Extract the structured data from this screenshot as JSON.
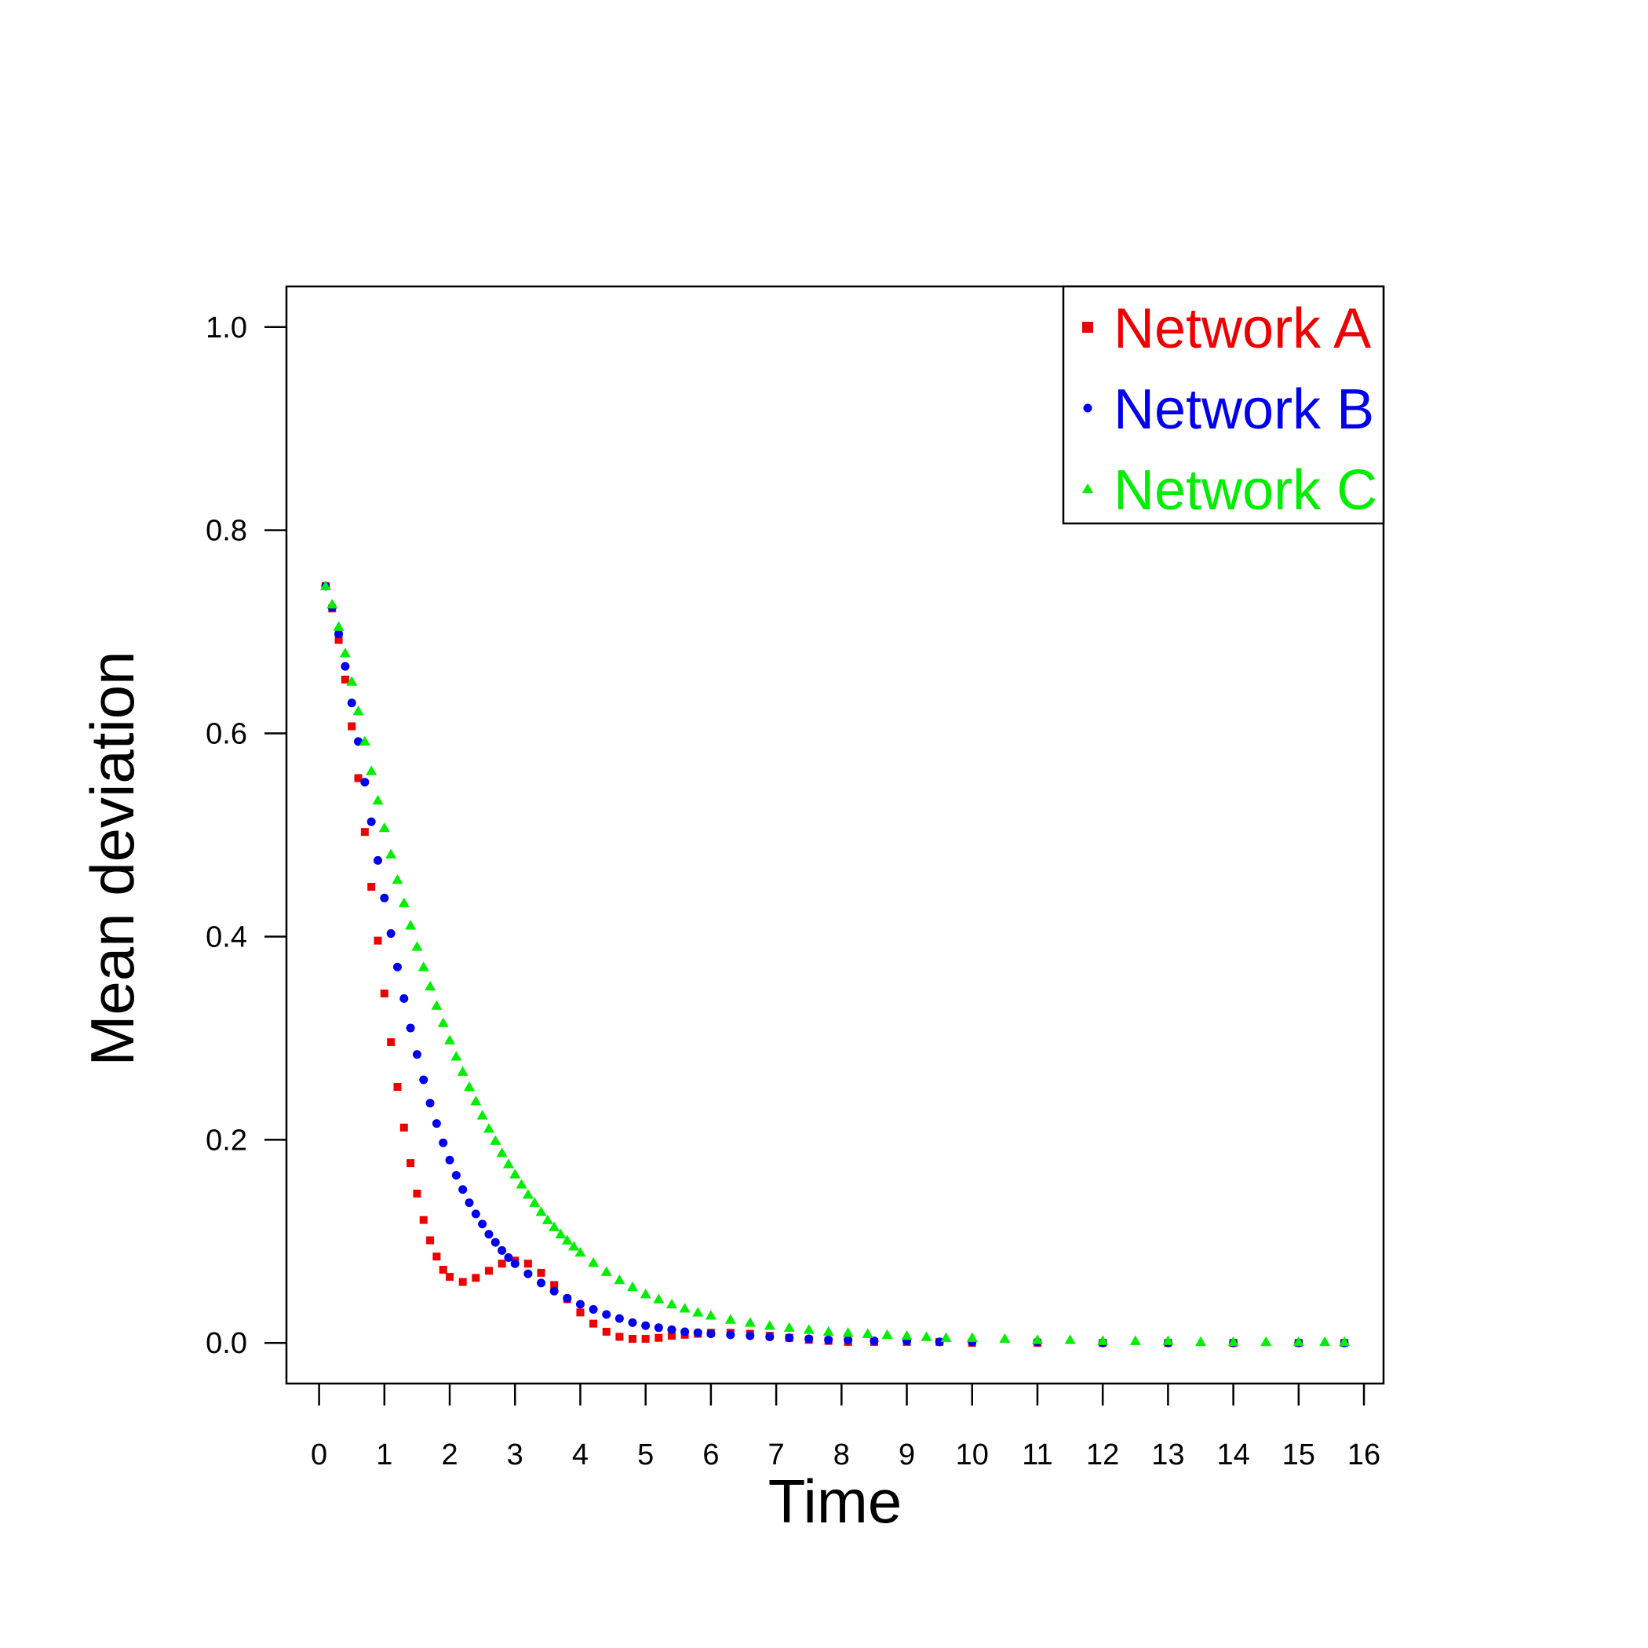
{
  "chart_data": {
    "type": "scatter",
    "title": "",
    "xlabel": "Time",
    "ylabel": "Mean deviation",
    "xlim": [
      -0.5,
      16.3
    ],
    "ylim": [
      -0.04,
      1.04
    ],
    "xticks": [
      0,
      1,
      2,
      3,
      4,
      5,
      6,
      7,
      8,
      9,
      10,
      11,
      12,
      13,
      14,
      15,
      16
    ],
    "yticks": [
      0.0,
      0.2,
      0.4,
      0.6,
      0.8,
      1.0
    ],
    "ytick_labels": [
      "0.0",
      "0.2",
      "0.4",
      "0.6",
      "0.8",
      "1.0"
    ],
    "grid": false,
    "legend": {
      "position": "top-right",
      "entries": [
        {
          "series": 0,
          "label": "Network A"
        },
        {
          "series": 1,
          "label": "Network B"
        },
        {
          "series": 2,
          "label": "Network C"
        }
      ]
    },
    "series": [
      {
        "name": "Network A",
        "color": "#ee0000",
        "marker": "square",
        "x": [
          0.1,
          0.2,
          0.3,
          0.4,
          0.5,
          0.6,
          0.7,
          0.8,
          0.9,
          1.0,
          1.1,
          1.2,
          1.3,
          1.4,
          1.5,
          1.6,
          1.7,
          1.8,
          1.9,
          2.0,
          2.2,
          2.4,
          2.6,
          2.8,
          3.0,
          3.2,
          3.4,
          3.6,
          3.8,
          4.0,
          4.2,
          4.4,
          4.6,
          4.8,
          5.0,
          5.2,
          5.4,
          5.6,
          5.8,
          6.0,
          6.3,
          6.6,
          6.9,
          7.2,
          7.5,
          7.8,
          8.1,
          8.5,
          9.0,
          9.5,
          10.0,
          11.0,
          12.0,
          13.0,
          14.0,
          15.0,
          15.7
        ],
        "y": [
          0.745,
          0.723,
          0.692,
          0.653,
          0.607,
          0.556,
          0.503,
          0.449,
          0.396,
          0.344,
          0.296,
          0.252,
          0.212,
          0.177,
          0.147,
          0.121,
          0.101,
          0.085,
          0.072,
          0.065,
          0.06,
          0.064,
          0.071,
          0.078,
          0.081,
          0.078,
          0.069,
          0.057,
          0.043,
          0.03,
          0.019,
          0.011,
          0.006,
          0.004,
          0.004,
          0.005,
          0.007,
          0.008,
          0.009,
          0.01,
          0.01,
          0.009,
          0.007,
          0.005,
          0.003,
          0.002,
          0.001,
          0.001,
          0.001,
          0.001,
          0.0,
          0.0,
          0.0,
          0.0,
          0.0,
          0.0,
          0.0
        ]
      },
      {
        "name": "Network B",
        "color": "#0000ee",
        "marker": "circle",
        "x": [
          0.1,
          0.2,
          0.3,
          0.4,
          0.5,
          0.6,
          0.7,
          0.8,
          0.9,
          1.0,
          1.1,
          1.2,
          1.3,
          1.4,
          1.5,
          1.6,
          1.7,
          1.8,
          1.9,
          2.0,
          2.1,
          2.2,
          2.3,
          2.4,
          2.5,
          2.6,
          2.7,
          2.8,
          2.9,
          3.0,
          3.2,
          3.4,
          3.6,
          3.8,
          4.0,
          4.2,
          4.4,
          4.6,
          4.8,
          5.0,
          5.2,
          5.4,
          5.6,
          5.8,
          6.0,
          6.3,
          6.6,
          6.9,
          7.2,
          7.5,
          7.8,
          8.1,
          8.5,
          9.0,
          9.5,
          10.0,
          11.0,
          12.0,
          13.0,
          14.0,
          15.0,
          15.7
        ],
        "y": [
          0.745,
          0.724,
          0.698,
          0.666,
          0.63,
          0.592,
          0.552,
          0.513,
          0.475,
          0.438,
          0.403,
          0.37,
          0.339,
          0.31,
          0.284,
          0.259,
          0.236,
          0.216,
          0.197,
          0.18,
          0.165,
          0.151,
          0.138,
          0.127,
          0.117,
          0.107,
          0.099,
          0.091,
          0.084,
          0.078,
          0.068,
          0.059,
          0.051,
          0.044,
          0.038,
          0.033,
          0.028,
          0.024,
          0.02,
          0.017,
          0.015,
          0.013,
          0.011,
          0.01,
          0.009,
          0.008,
          0.007,
          0.006,
          0.005,
          0.004,
          0.003,
          0.003,
          0.002,
          0.002,
          0.001,
          0.001,
          0.001,
          0.0,
          0.0,
          0.0,
          0.0,
          0.0
        ]
      },
      {
        "name": "Network C",
        "color": "#00ee00",
        "marker": "triangle",
        "x": [
          0.1,
          0.2,
          0.3,
          0.4,
          0.5,
          0.6,
          0.7,
          0.8,
          0.9,
          1.0,
          1.1,
          1.2,
          1.3,
          1.4,
          1.5,
          1.6,
          1.7,
          1.8,
          1.9,
          2.0,
          2.1,
          2.2,
          2.3,
          2.4,
          2.5,
          2.6,
          2.7,
          2.8,
          2.9,
          3.0,
          3.1,
          3.2,
          3.3,
          3.4,
          3.5,
          3.6,
          3.7,
          3.8,
          3.9,
          4.0,
          4.2,
          4.4,
          4.6,
          4.8,
          5.0,
          5.2,
          5.4,
          5.6,
          5.8,
          6.0,
          6.3,
          6.6,
          6.9,
          7.2,
          7.5,
          7.8,
          8.1,
          8.4,
          8.7,
          9.0,
          9.3,
          9.6,
          10.0,
          10.5,
          11.0,
          11.5,
          12.0,
          12.5,
          13.0,
          13.5,
          14.0,
          14.5,
          15.0,
          15.4,
          15.7
        ],
        "y": [
          0.745,
          0.727,
          0.705,
          0.679,
          0.651,
          0.622,
          0.592,
          0.563,
          0.534,
          0.507,
          0.481,
          0.456,
          0.433,
          0.411,
          0.39,
          0.37,
          0.351,
          0.332,
          0.315,
          0.298,
          0.282,
          0.267,
          0.252,
          0.238,
          0.224,
          0.211,
          0.199,
          0.187,
          0.176,
          0.166,
          0.156,
          0.146,
          0.138,
          0.129,
          0.121,
          0.114,
          0.107,
          0.101,
          0.095,
          0.089,
          0.079,
          0.07,
          0.062,
          0.055,
          0.048,
          0.043,
          0.038,
          0.034,
          0.03,
          0.027,
          0.023,
          0.02,
          0.017,
          0.015,
          0.013,
          0.011,
          0.01,
          0.009,
          0.008,
          0.007,
          0.006,
          0.005,
          0.005,
          0.004,
          0.003,
          0.003,
          0.002,
          0.002,
          0.002,
          0.001,
          0.001,
          0.001,
          0.001,
          0.001,
          0.001
        ]
      }
    ]
  }
}
